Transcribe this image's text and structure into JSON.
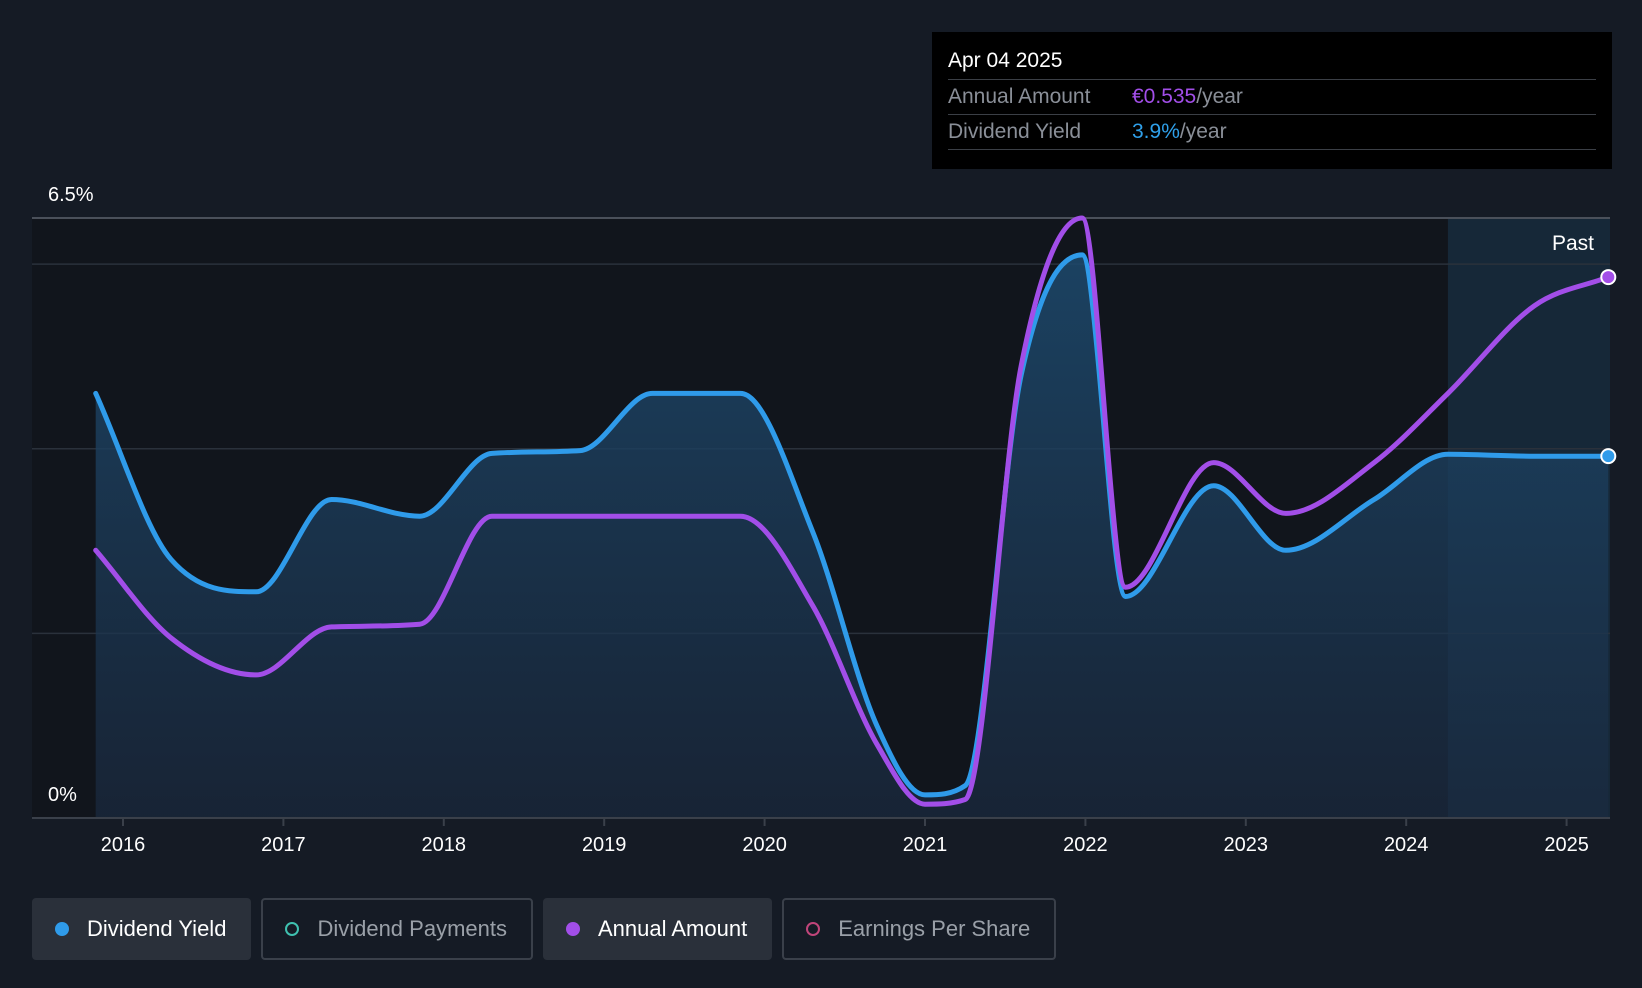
{
  "tooltip": {
    "date": "Apr 04 2025",
    "annual_amount_label": "Annual Amount",
    "annual_amount_value": "€0.535",
    "dividend_yield_label": "Dividend Yield",
    "dividend_yield_value": "3.9%",
    "unit": "/year"
  },
  "legend": [
    {
      "label": "Dividend Yield",
      "color": "#2f9bea",
      "active": true,
      "filled": true
    },
    {
      "label": "Dividend Payments",
      "color": "#3fc1b0",
      "active": false,
      "filled": false
    },
    {
      "label": "Annual Amount",
      "color": "#a24ee8",
      "active": true,
      "filled": true
    },
    {
      "label": "Earnings Per Share",
      "color": "#c0457a",
      "active": false,
      "filled": false
    }
  ],
  "chart_data": {
    "type": "line",
    "y_tick_labels": [
      "6.5%",
      "0%"
    ],
    "ylim": [
      0,
      6.5
    ],
    "xlim": [
      2015.83,
      2025.26
    ],
    "x_tick_labels": [
      "2016",
      "2017",
      "2018",
      "2019",
      "2020",
      "2021",
      "2022",
      "2023",
      "2024",
      "2025"
    ],
    "past_label": "Past",
    "past_region_start": 2024.26,
    "grid": true,
    "series": [
      {
        "name": "Dividend Yield",
        "color": "#2f9bea",
        "area": true,
        "points": [
          [
            2015.83,
            4.6
          ],
          [
            2016.3,
            2.8
          ],
          [
            2016.83,
            2.45
          ],
          [
            2017.3,
            3.45
          ],
          [
            2017.85,
            3.27
          ],
          [
            2018.3,
            3.95
          ],
          [
            2018.85,
            3.98
          ],
          [
            2019.3,
            4.6
          ],
          [
            2019.85,
            4.6
          ],
          [
            2020.3,
            3.1
          ],
          [
            2020.7,
            1.0
          ],
          [
            2021.0,
            0.25
          ],
          [
            2021.25,
            0.35
          ],
          [
            2021.6,
            4.8
          ],
          [
            2021.98,
            6.1
          ],
          [
            2022.25,
            2.4
          ],
          [
            2022.8,
            3.6
          ],
          [
            2023.25,
            2.9
          ],
          [
            2023.8,
            3.45
          ],
          [
            2024.26,
            3.94
          ],
          [
            2024.8,
            3.92
          ],
          [
            2025.26,
            3.92
          ]
        ]
      },
      {
        "name": "Annual Amount",
        "color": "#a24ee8",
        "area": false,
        "points": [
          [
            2015.83,
            2.9
          ],
          [
            2016.3,
            1.95
          ],
          [
            2016.83,
            1.55
          ],
          [
            2017.3,
            2.07
          ],
          [
            2017.85,
            2.1
          ],
          [
            2018.3,
            3.27
          ],
          [
            2018.85,
            3.27
          ],
          [
            2019.3,
            3.27
          ],
          [
            2019.85,
            3.27
          ],
          [
            2020.3,
            2.3
          ],
          [
            2020.7,
            0.8
          ],
          [
            2021.0,
            0.15
          ],
          [
            2021.25,
            0.2
          ],
          [
            2021.6,
            4.9
          ],
          [
            2021.98,
            6.5
          ],
          [
            2022.25,
            2.5
          ],
          [
            2022.8,
            3.85
          ],
          [
            2023.25,
            3.3
          ],
          [
            2023.8,
            3.85
          ],
          [
            2024.26,
            4.6
          ],
          [
            2024.8,
            5.55
          ],
          [
            2025.26,
            5.86
          ]
        ]
      }
    ]
  }
}
